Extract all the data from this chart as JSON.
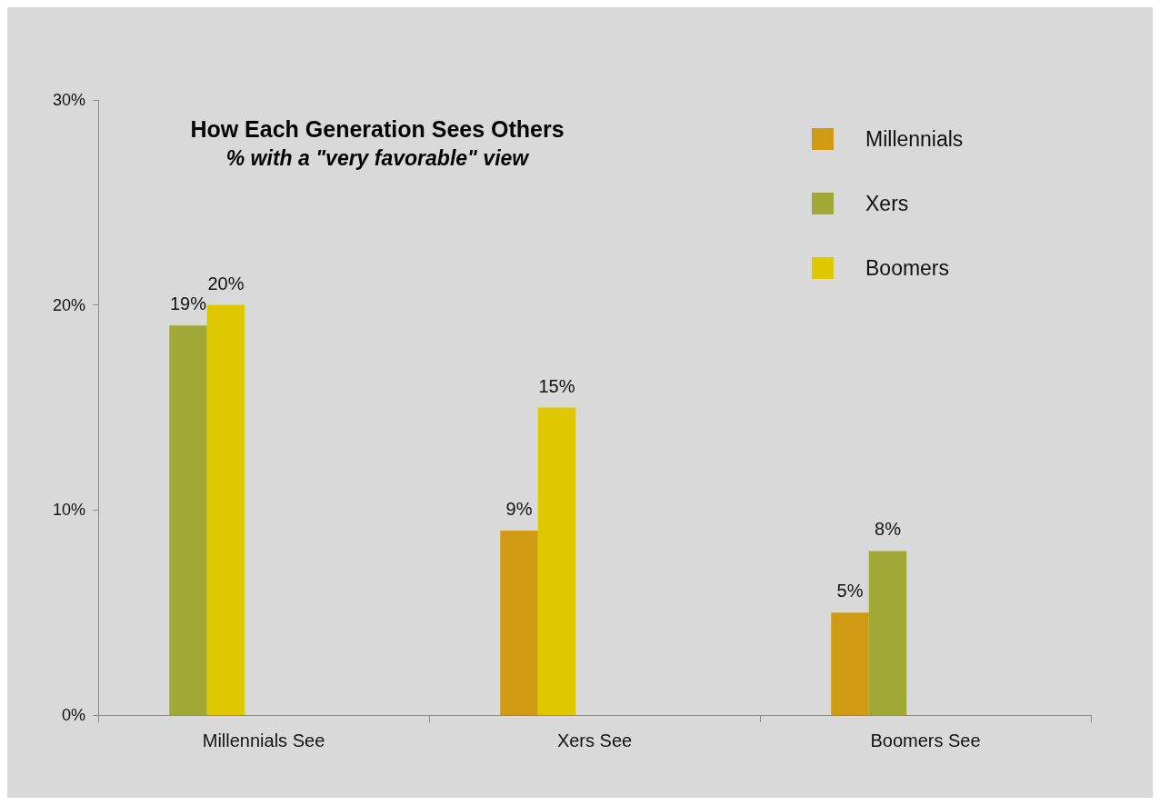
{
  "chart_data": {
    "type": "bar",
    "title": "How Each Generation Sees Others",
    "subtitle": "% with a \"very favorable\" view",
    "categories": [
      "Millennials See",
      "Xers See",
      "Boomers See"
    ],
    "series": [
      {
        "name": "Millennials",
        "color": "#d09a15",
        "values": [
          null,
          9,
          5
        ],
        "value_labels": [
          null,
          "9%",
          "5%"
        ]
      },
      {
        "name": "Xers",
        "color": "#a0a935",
        "values": [
          19,
          null,
          8
        ],
        "value_labels": [
          "19%",
          null,
          "8%"
        ]
      },
      {
        "name": "Boomers",
        "color": "#e0c800",
        "values": [
          20,
          15,
          null
        ],
        "value_labels": [
          "20%",
          "15%",
          null
        ]
      }
    ],
    "ylim": [
      0,
      30
    ],
    "yticks": [
      {
        "value": 0,
        "label": "0%"
      },
      {
        "value": 10,
        "label": "10%"
      },
      {
        "value": 20,
        "label": "20%"
      },
      {
        "value": 30,
        "label": "30%"
      }
    ],
    "grid": false,
    "legend": "top right"
  }
}
